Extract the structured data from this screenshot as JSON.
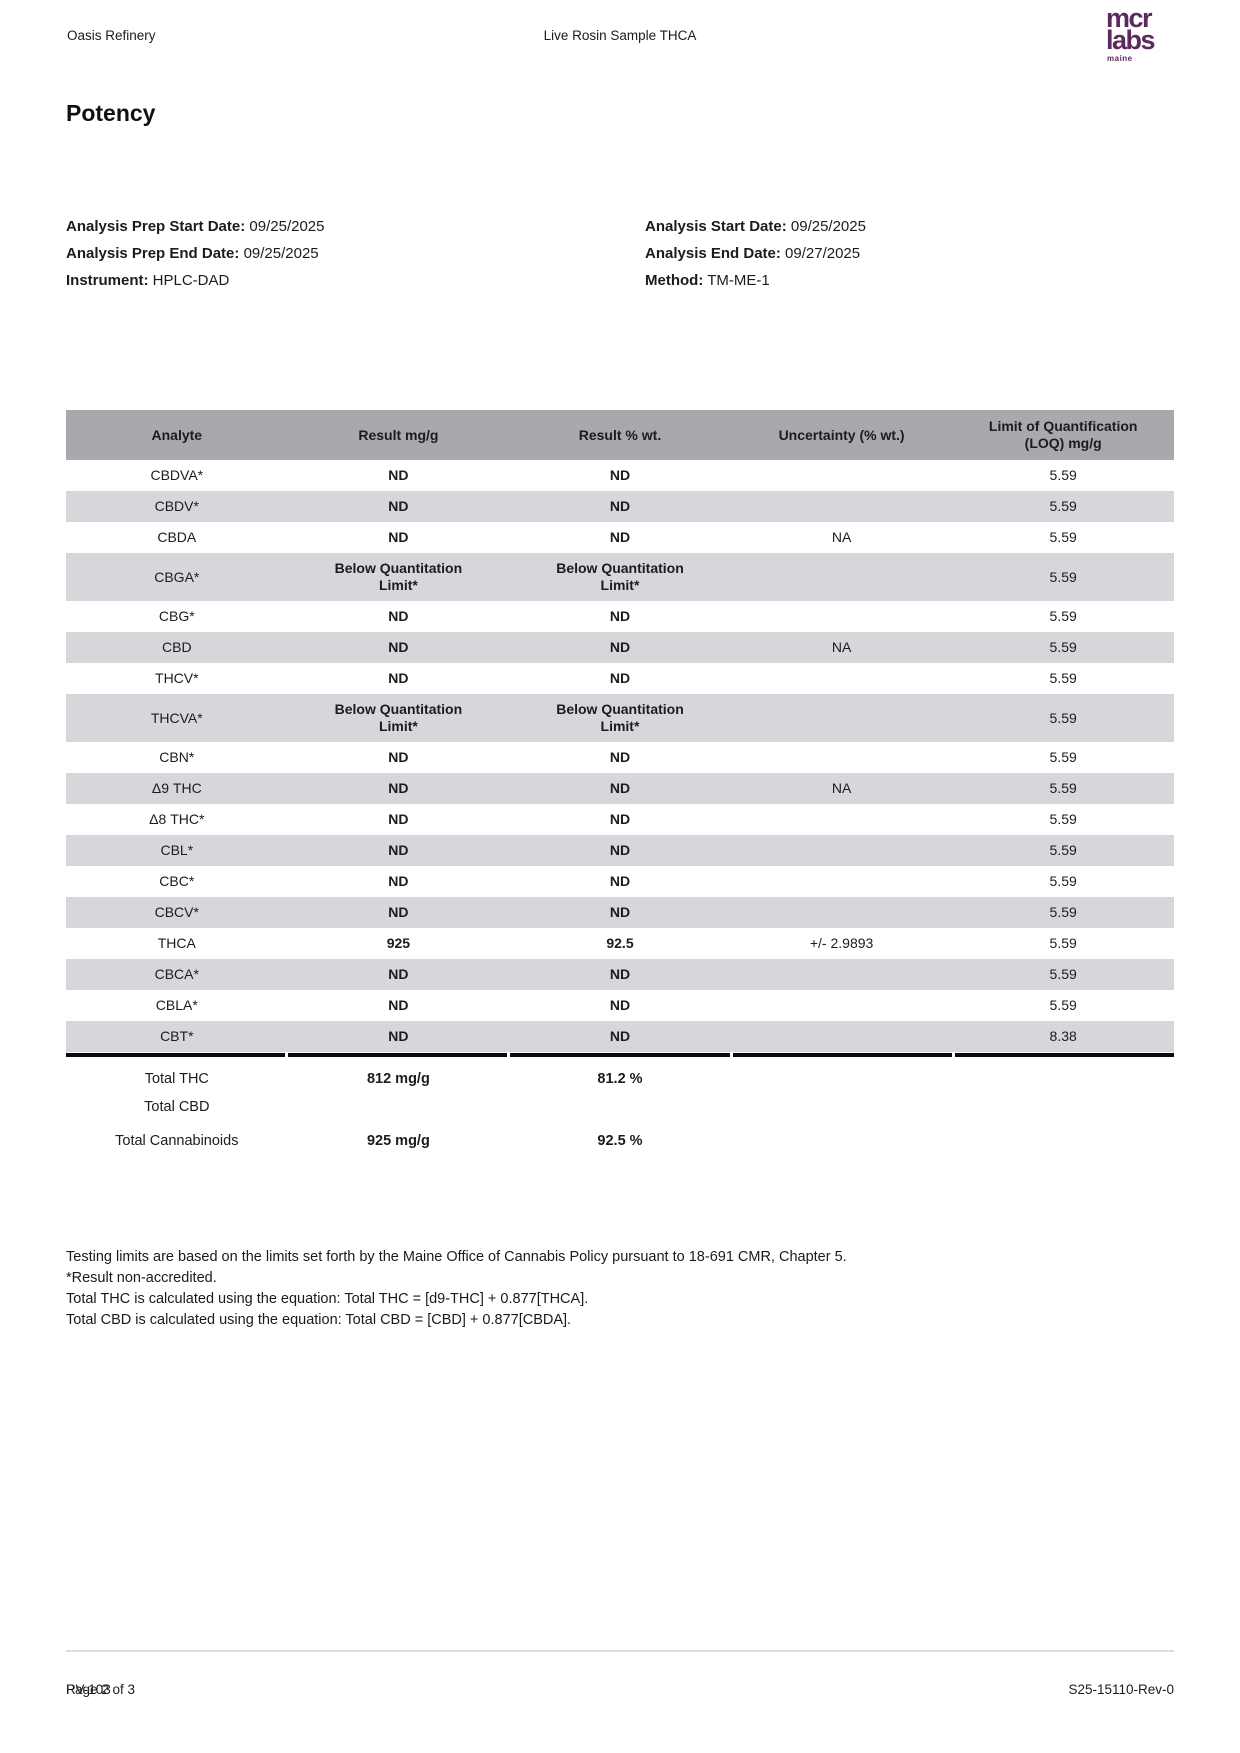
{
  "colors": {
    "brand_purple": "#5a2a5c",
    "table_header_bg": "#a7a9ac",
    "row_stripe_bg": "#d5d7da",
    "rule_black": "#0b0b0b",
    "divider_gray": "#dcdcdc"
  },
  "header": {
    "client": "Oasis Refinery",
    "sample": "Live Rosin Sample THCA"
  },
  "logo": {
    "line1": "mcr",
    "line2": "labs",
    "line3": "maine"
  },
  "title": "Potency",
  "info": {
    "left": [
      {
        "label": "Analysis Prep Start Date:",
        "value": "09/25/2025"
      },
      {
        "label": "Analysis Prep End Date:",
        "value": "09/25/2025"
      },
      {
        "label": "Instrument:",
        "value": "HPLC-DAD"
      }
    ],
    "right": [
      {
        "label": "Analysis Start Date:",
        "value": "09/25/2025"
      },
      {
        "label": "Analysis End Date:",
        "value": "09/27/2025"
      },
      {
        "label": "Method:",
        "value": "TM-ME-1"
      }
    ]
  },
  "table": {
    "columns": [
      "Analyte",
      "Result mg/g",
      "Result % wt.",
      "Uncertainty (% wt.)",
      "Limit of Quantification (LOQ) mg/g"
    ],
    "rows": [
      {
        "analyte": "CBDVA*",
        "result_mg": "ND",
        "result_pct": "ND",
        "uncertainty": "",
        "loq": "5.59"
      },
      {
        "analyte": "CBDV*",
        "result_mg": "ND",
        "result_pct": "ND",
        "uncertainty": "",
        "loq": "5.59"
      },
      {
        "analyte": "CBDA",
        "result_mg": "ND",
        "result_pct": "ND",
        "uncertainty": "NA",
        "loq": "5.59"
      },
      {
        "analyte": "CBGA*",
        "result_mg": "Below Quantitation Limit*",
        "result_pct": "Below Quantitation Limit*",
        "uncertainty": "",
        "loq": "5.59"
      },
      {
        "analyte": "CBG*",
        "result_mg": "ND",
        "result_pct": "ND",
        "uncertainty": "",
        "loq": "5.59"
      },
      {
        "analyte": "CBD",
        "result_mg": "ND",
        "result_pct": "ND",
        "uncertainty": "NA",
        "loq": "5.59"
      },
      {
        "analyte": "THCV*",
        "result_mg": "ND",
        "result_pct": "ND",
        "uncertainty": "",
        "loq": "5.59"
      },
      {
        "analyte": "THCVA*",
        "result_mg": "Below Quantitation Limit*",
        "result_pct": "Below Quantitation Limit*",
        "uncertainty": "",
        "loq": "5.59"
      },
      {
        "analyte": "CBN*",
        "result_mg": "ND",
        "result_pct": "ND",
        "uncertainty": "",
        "loq": "5.59"
      },
      {
        "analyte": "Δ9 THC",
        "result_mg": "ND",
        "result_pct": "ND",
        "uncertainty": "NA",
        "loq": "5.59"
      },
      {
        "analyte": "Δ8 THC*",
        "result_mg": "ND",
        "result_pct": "ND",
        "uncertainty": "",
        "loq": "5.59"
      },
      {
        "analyte": "CBL*",
        "result_mg": "ND",
        "result_pct": "ND",
        "uncertainty": "",
        "loq": "5.59"
      },
      {
        "analyte": "CBC*",
        "result_mg": "ND",
        "result_pct": "ND",
        "uncertainty": "",
        "loq": "5.59"
      },
      {
        "analyte": "CBCV*",
        "result_mg": "ND",
        "result_pct": "ND",
        "uncertainty": "",
        "loq": "5.59"
      },
      {
        "analyte": "THCA",
        "result_mg": "925",
        "result_pct": "92.5",
        "uncertainty": "+/- 2.9893",
        "loq": "5.59"
      },
      {
        "analyte": "CBCA*",
        "result_mg": "ND",
        "result_pct": "ND",
        "uncertainty": "",
        "loq": "5.59"
      },
      {
        "analyte": "CBLA*",
        "result_mg": "ND",
        "result_pct": "ND",
        "uncertainty": "",
        "loq": "5.59"
      },
      {
        "analyte": "CBT*",
        "result_mg": "ND",
        "result_pct": "ND",
        "uncertainty": "",
        "loq": "8.38"
      }
    ]
  },
  "totals": [
    {
      "label": "Total THC",
      "mg": "812 mg/g",
      "pct": "81.2 %"
    },
    {
      "label": "Total CBD",
      "mg": "",
      "pct": ""
    },
    {
      "label": "Total Cannabinoids",
      "mg": "925 mg/g",
      "pct": "92.5 %"
    }
  ],
  "notes": [
    "Testing limits are based on the limits set forth by the Maine Office of Cannabis Policy pursuant to 18-691 CMR, Chapter 5.",
    "*Result non-accredited.",
    "Total THC is calculated using the equation: Total THC = [d9-THC] + 0.877[THCA].",
    "Total CBD is calculated using the equation: Total CBD = [CBD] + 0.877[CBDA]."
  ],
  "footer": {
    "left": "RV-103",
    "center": "Page 2 of 3",
    "right": "S25-15110-Rev-0"
  }
}
